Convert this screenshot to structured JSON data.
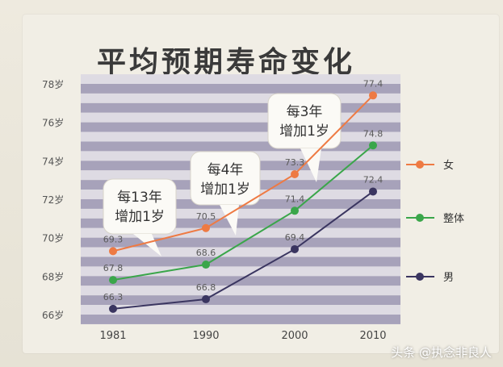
{
  "title": "平均预期寿命变化",
  "watermark": "头条 @执念非良人",
  "colors": {
    "female": "#ee7a43",
    "overall": "#3aa64a",
    "male": "#3a3560",
    "stripe_dark": "#a7a2ba",
    "stripe_light": "#dedbe3"
  },
  "chart_data": {
    "type": "line",
    "x": [
      "1981",
      "1990",
      "2000",
      "2010"
    ],
    "ylim": [
      66,
      78
    ],
    "y_ticks": [
      "78岁",
      "76岁",
      "74岁",
      "72岁",
      "70岁",
      "68岁",
      "66岁"
    ],
    "series": [
      {
        "name": "女",
        "values": [
          69.3,
          70.5,
          73.3,
          77.4
        ],
        "labels": [
          "69.3",
          "70.5",
          "73.3",
          "77.4"
        ]
      },
      {
        "name": "整体",
        "values": [
          67.8,
          68.6,
          71.4,
          74.8
        ],
        "labels": [
          "67.8",
          "68.6",
          "71.4",
          "74.8"
        ]
      },
      {
        "name": "男",
        "values": [
          66.3,
          66.8,
          69.4,
          72.4
        ],
        "labels": [
          "66.3",
          "66.8",
          "69.4",
          "72.4"
        ]
      }
    ],
    "annotations": [
      {
        "line1": "每13年",
        "line2": "增加1岁"
      },
      {
        "line1": "每4年",
        "line2": "增加1岁"
      },
      {
        "line1": "每3年",
        "line2": "增加1岁"
      }
    ],
    "grid": true,
    "legend_position": "right"
  }
}
